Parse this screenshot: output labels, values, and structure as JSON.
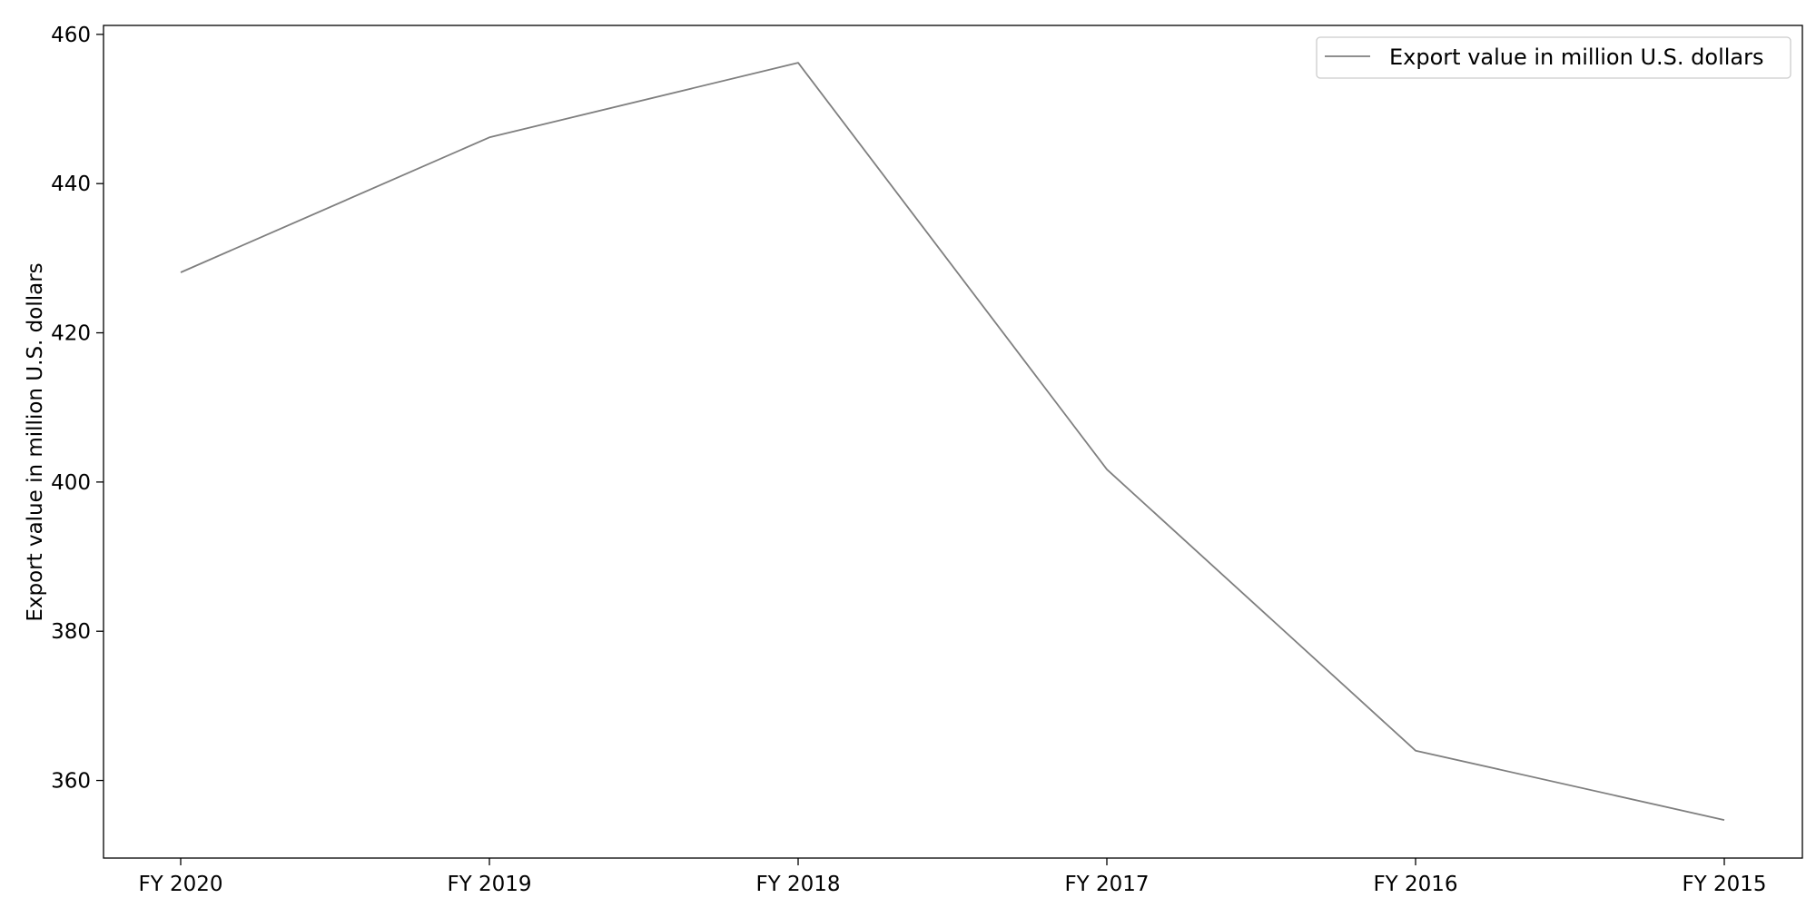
{
  "chart_data": {
    "type": "line",
    "categories": [
      "FY 2020",
      "FY 2019",
      "FY 2018",
      "FY 2017",
      "FY 2016",
      "FY 2015"
    ],
    "series": [
      {
        "name": "Export value in million U.S. dollars",
        "values": [
          428.1,
          446.2,
          456.2,
          401.7,
          364.0,
          354.7
        ],
        "color": "#7f7f7f"
      }
    ],
    "xlabel": "",
    "ylabel": "Export value in million U.S. dollars",
    "ylim": [
      349.6,
      461.2
    ],
    "yticks": [
      360,
      380,
      400,
      420,
      440,
      460
    ],
    "grid": false,
    "legend_position": "top-right"
  }
}
